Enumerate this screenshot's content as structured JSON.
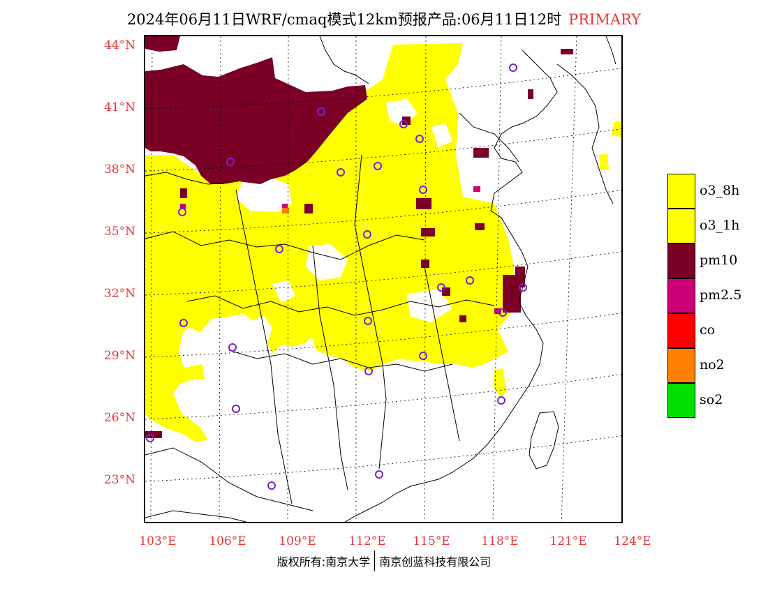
{
  "title": {
    "main": "2024年06月11日WRF/cmaq模式12km预报产品:06月11日12时",
    "pollutant": "PRIMARY",
    "pollutant_color": "#e8383c"
  },
  "lat_labels": [
    "44°N",
    "41°N",
    "38°N",
    "35°N",
    "32°N",
    "29°N",
    "26°N",
    "23°N"
  ],
  "lon_labels": [
    "103°E",
    "106°E",
    "109°E",
    "112°E",
    "115°E",
    "118°E",
    "121°E",
    "124°E"
  ],
  "legend": [
    {
      "label": "o3_8h",
      "color": "#ffff00"
    },
    {
      "label": "o3_1h",
      "color": "#ffff00"
    },
    {
      "label": "pm10",
      "color": "#7a0026"
    },
    {
      "label": "pm2.5",
      "color": "#cc0077"
    },
    {
      "label": "co",
      "color": "#ff0000"
    },
    {
      "label": "no2",
      "color": "#ff8000"
    },
    {
      "label": "so2",
      "color": "#00e000"
    }
  ],
  "copyright": {
    "left": "版权所有:南京大学",
    "right": "南京创蓝科技有限公司"
  }
}
